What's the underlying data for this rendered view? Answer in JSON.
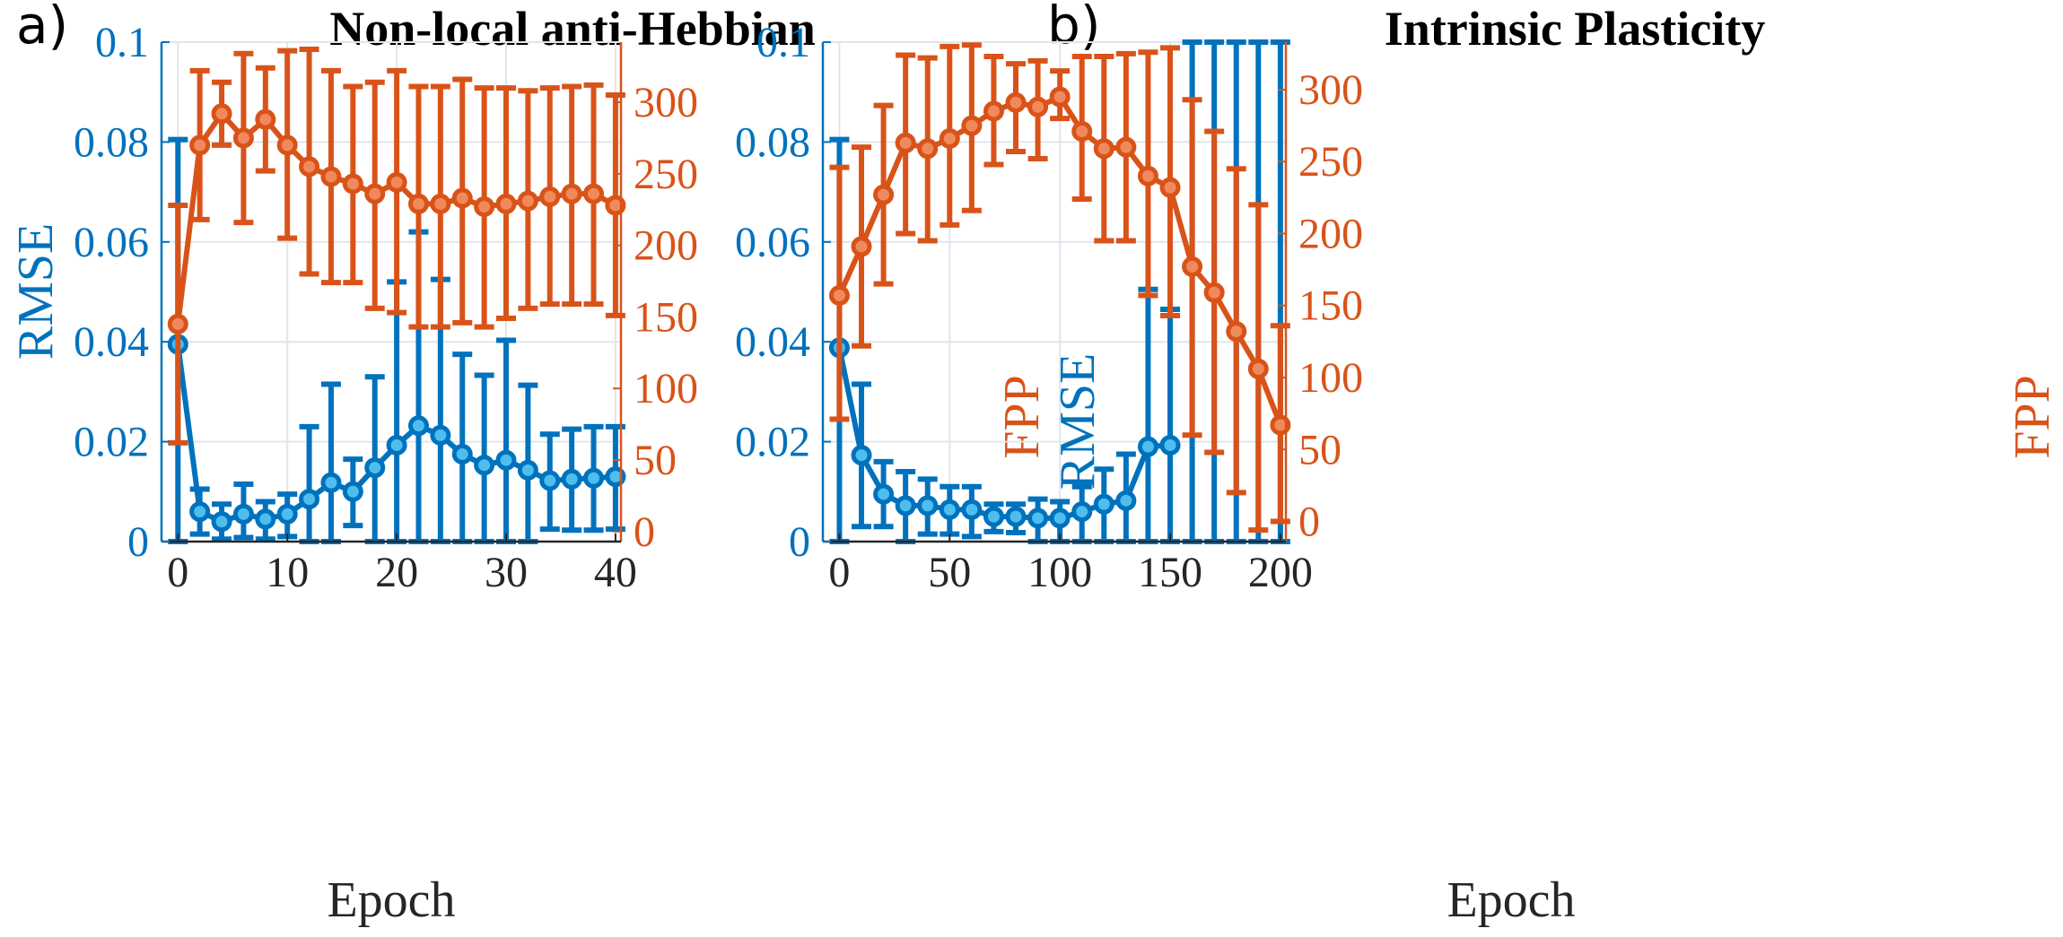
{
  "colors": {
    "rmse": "#0072BD",
    "rmse_marker": "#4DBEEE",
    "fpp": "#D95319",
    "fpp_marker": "#F08A5D",
    "grid": "#dfe6ee",
    "axis": "#262626"
  },
  "chart_data": [
    {
      "panel_label": "a)",
      "type": "line",
      "title": "Non-local anti-Hebbian",
      "xlabel": "Epoch",
      "ylabel_left": "RMSE",
      "ylabel_right": "FPP",
      "xlim": [
        -1.5,
        40.5
      ],
      "xticks": [
        0,
        10,
        20,
        30,
        40
      ],
      "xtick_labels": [
        "0",
        "10",
        "20",
        "30",
        "40"
      ],
      "ylim_left": [
        0,
        0.1
      ],
      "yticks_left": [
        0,
        0.02,
        0.04,
        0.06,
        0.08,
        0.1
      ],
      "ytick_labels_left": [
        "0",
        "0.02",
        "0.04",
        "0.06",
        "0.08",
        "0.1"
      ],
      "ylim_right": [
        -7,
        342
      ],
      "yticks_right": [
        0,
        50,
        100,
        150,
        200,
        250,
        300
      ],
      "ytick_labels_right": [
        "0",
        "50",
        "100",
        "150",
        "200",
        "250",
        "300"
      ],
      "grid": true,
      "x": [
        0,
        2,
        4,
        6,
        8,
        10,
        12,
        14,
        16,
        18,
        20,
        22,
        24,
        26,
        28,
        30,
        32,
        34,
        36,
        38,
        40
      ],
      "series": [
        {
          "name": "RMSE",
          "axis": "left",
          "values": [
            0.0395,
            0.006,
            0.004,
            0.0055,
            0.0045,
            0.0055,
            0.0085,
            0.0118,
            0.01,
            0.0148,
            0.0193,
            0.0232,
            0.0213,
            0.0175,
            0.0153,
            0.0163,
            0.0143,
            0.0122,
            0.0125,
            0.0127,
            0.013
          ],
          "err_low": [
            0,
            0.0015,
            0.0005,
            0.0008,
            0.0005,
            0.001,
            0.0,
            0.0,
            0.0032,
            0.0,
            0.0,
            0.0,
            0.0,
            0.0,
            0.0,
            0.0,
            0.0,
            0.0025,
            0.0023,
            0.0023,
            0.0025
          ],
          "err_high": [
            0.0805,
            0.0105,
            0.0075,
            0.0115,
            0.008,
            0.0095,
            0.023,
            0.0315,
            0.0165,
            0.033,
            0.052,
            0.062,
            0.0525,
            0.0375,
            0.0333,
            0.0403,
            0.0313,
            0.0215,
            0.0225,
            0.023,
            0.023
          ]
        },
        {
          "name": "FPP",
          "axis": "right",
          "values": [
            145,
            270,
            292,
            275,
            288,
            270,
            255,
            248,
            243,
            236,
            244,
            229,
            229,
            233,
            227,
            229,
            231,
            234,
            236,
            236,
            228
          ],
          "err_low": [
            62,
            218,
            270,
            216,
            252,
            205,
            180,
            174,
            174,
            156,
            153,
            143,
            143,
            146,
            143,
            149,
            156,
            159,
            159,
            159,
            151
          ],
          "err_high": [
            228,
            322,
            314,
            334,
            324,
            336,
            337,
            322,
            311,
            314,
            322,
            311,
            311,
            316,
            310,
            310,
            308,
            310,
            311,
            312,
            305
          ]
        }
      ]
    },
    {
      "panel_label": "b)",
      "type": "line",
      "title": "Intrinsic Plasticity",
      "xlabel": "Epoch",
      "ylabel_left": "RMSE",
      "ylabel_right": "FPP",
      "xlim": [
        -7.5,
        202.5
      ],
      "xticks": [
        0,
        50,
        100,
        150,
        200
      ],
      "xtick_labels": [
        "0",
        "50",
        "100",
        "150",
        "200"
      ],
      "ylim_left": [
        0,
        0.1
      ],
      "yticks_left": [
        0,
        0.02,
        0.04,
        0.06,
        0.08,
        0.1
      ],
      "ytick_labels_left": [
        "0",
        "0.02",
        "0.04",
        "0.06",
        "0.08",
        "0.1"
      ],
      "ylim_right": [
        -14,
        333
      ],
      "yticks_right": [
        0,
        50,
        100,
        150,
        200,
        250,
        300
      ],
      "ytick_labels_right": [
        "0",
        "50",
        "100",
        "150",
        "200",
        "250",
        "300"
      ],
      "grid": true,
      "x": [
        0,
        10,
        20,
        30,
        40,
        50,
        60,
        70,
        80,
        90,
        100,
        110,
        120,
        130,
        140,
        150,
        160,
        170,
        180,
        190,
        200
      ],
      "series": [
        {
          "name": "RMSE",
          "axis": "left",
          "values": [
            0.0388,
            0.0173,
            0.0095,
            0.0072,
            0.0072,
            0.0064,
            0.0064,
            0.005,
            0.005,
            0.0047,
            0.0047,
            0.006,
            0.0075,
            0.0082,
            0.019,
            0.0193,
            null,
            null,
            null,
            null,
            null
          ],
          "err_low": [
            0,
            0.003,
            0.003,
            0.0,
            0.0015,
            0.0015,
            0.001,
            0.002,
            0.0018,
            0.0,
            0.0,
            0.0,
            0.0,
            0.0,
            0.0,
            0.0,
            0,
            0,
            0,
            0,
            0
          ],
          "err_high": [
            0.0805,
            0.0315,
            0.016,
            0.014,
            0.0125,
            0.011,
            0.011,
            0.0075,
            0.0075,
            0.0085,
            0.008,
            0.011,
            0.0145,
            0.0175,
            0.0505,
            0.0465,
            0.1,
            0.1,
            0.1,
            0.1,
            0.1
          ]
        },
        {
          "name": "FPP",
          "axis": "right",
          "values": [
            157,
            191,
            227,
            263,
            259,
            266,
            275,
            285,
            291,
            288,
            295,
            271,
            259,
            260,
            240,
            232,
            177,
            159,
            132,
            106,
            67
          ],
          "err_low": [
            71,
            122,
            165,
            200,
            195,
            206,
            216,
            248,
            257,
            252,
            280,
            224,
            195,
            195,
            157,
            143,
            60,
            48,
            20,
            -6,
            0
          ],
          "err_high": [
            246,
            260,
            289,
            324,
            322,
            330,
            331,
            323,
            318,
            320,
            313,
            323,
            323,
            325,
            326,
            329,
            293,
            271,
            245,
            220,
            136
          ]
        }
      ]
    }
  ]
}
